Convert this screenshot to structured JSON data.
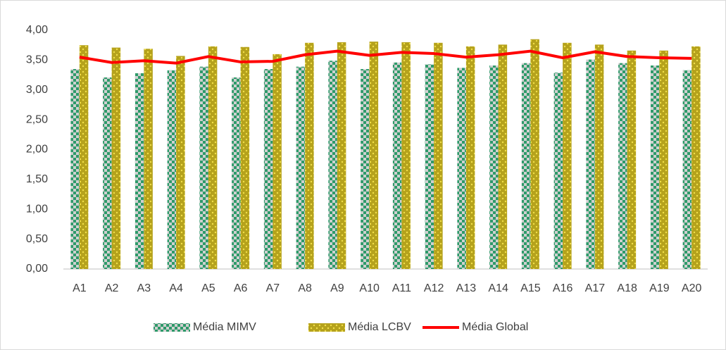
{
  "chart_data": {
    "type": "bar",
    "categories": [
      "A1",
      "A2",
      "A3",
      "A4",
      "A5",
      "A6",
      "A7",
      "A8",
      "A9",
      "A10",
      "A11",
      "A12",
      "A13",
      "A14",
      "A15",
      "A16",
      "A17",
      "A18",
      "A19",
      "A20"
    ],
    "series": [
      {
        "name": "Média MIMV",
        "type": "bar",
        "color": "#2e9a6a",
        "values": [
          3.35,
          3.21,
          3.28,
          3.33,
          3.39,
          3.21,
          3.35,
          3.39,
          3.49,
          3.35,
          3.46,
          3.43,
          3.37,
          3.41,
          3.45,
          3.29,
          3.51,
          3.45,
          3.41,
          3.33
        ]
      },
      {
        "name": "Média LCBV",
        "type": "bar",
        "color": "#b5a21c",
        "values": [
          3.75,
          3.71,
          3.69,
          3.57,
          3.73,
          3.72,
          3.6,
          3.79,
          3.8,
          3.81,
          3.8,
          3.79,
          3.73,
          3.76,
          3.85,
          3.79,
          3.76,
          3.66,
          3.66,
          3.73
        ]
      },
      {
        "name": "Média Global",
        "type": "line",
        "color": "#ff0000",
        "values": [
          3.55,
          3.46,
          3.49,
          3.45,
          3.56,
          3.47,
          3.48,
          3.59,
          3.65,
          3.58,
          3.63,
          3.61,
          3.55,
          3.59,
          3.65,
          3.54,
          3.64,
          3.56,
          3.54,
          3.53
        ]
      }
    ],
    "ylim": [
      0,
      4
    ],
    "yticks": [
      {
        "value": 0,
        "label": "0,00"
      },
      {
        "value": 0.5,
        "label": "0,50"
      },
      {
        "value": 1,
        "label": "1,00"
      },
      {
        "value": 1.5,
        "label": "1,50"
      },
      {
        "value": 2,
        "label": "2,00"
      },
      {
        "value": 2.5,
        "label": "2,50"
      },
      {
        "value": 3,
        "label": "3,00"
      },
      {
        "value": 3.5,
        "label": "3,50"
      },
      {
        "value": 4,
        "label": "4,00"
      }
    ],
    "grid": false,
    "legend": "bottom"
  }
}
